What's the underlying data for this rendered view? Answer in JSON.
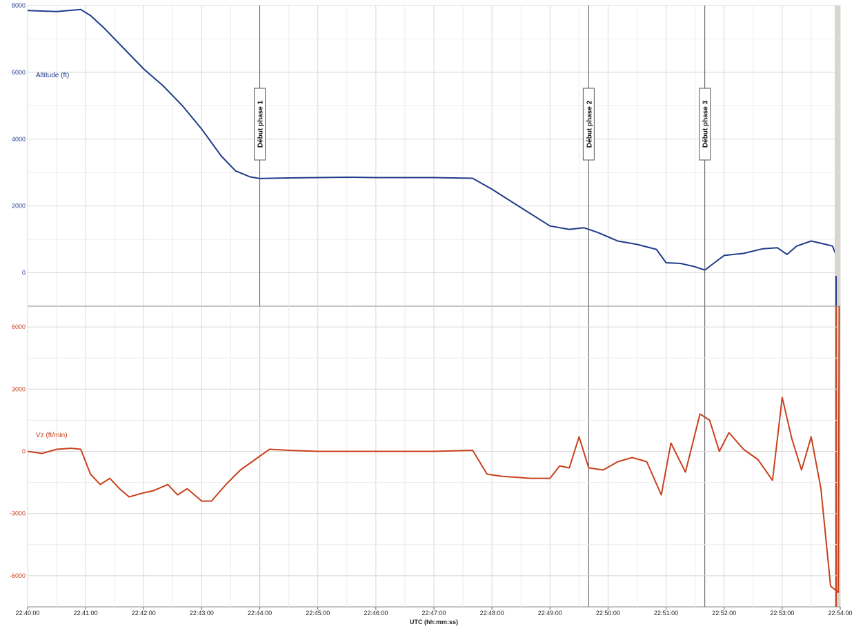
{
  "chart_data": [
    {
      "type": "line",
      "panel": "top",
      "series": [
        {
          "name": "Altitude (ft)",
          "color": "#1f3b8a",
          "points": [
            [
              "22:40:00",
              7850
            ],
            [
              "22:40:30",
              7820
            ],
            [
              "22:40:55",
              7880
            ],
            [
              "22:41:05",
              7700
            ],
            [
              "22:41:20",
              7300
            ],
            [
              "22:41:40",
              6700
            ],
            [
              "22:42:00",
              6100
            ],
            [
              "22:42:20",
              5600
            ],
            [
              "22:42:40",
              5000
            ],
            [
              "22:43:00",
              4300
            ],
            [
              "22:43:20",
              3500
            ],
            [
              "22:43:35",
              3050
            ],
            [
              "22:43:50",
              2870
            ],
            [
              "22:44:00",
              2820
            ],
            [
              "22:44:30",
              2840
            ],
            [
              "22:45:00",
              2850
            ],
            [
              "22:45:30",
              2860
            ],
            [
              "22:46:00",
              2850
            ],
            [
              "22:46:30",
              2850
            ],
            [
              "22:47:00",
              2850
            ],
            [
              "22:47:40",
              2830
            ],
            [
              "22:48:00",
              2500
            ],
            [
              "22:48:30",
              1950
            ],
            [
              "22:49:00",
              1400
            ],
            [
              "22:49:20",
              1300
            ],
            [
              "22:49:35",
              1350
            ],
            [
              "22:49:50",
              1200
            ],
            [
              "22:50:10",
              950
            ],
            [
              "22:50:30",
              850
            ],
            [
              "22:50:50",
              700
            ],
            [
              "22:51:00",
              300
            ],
            [
              "22:51:15",
              280
            ],
            [
              "22:51:30",
              180
            ],
            [
              "22:51:40",
              80
            ],
            [
              "22:51:50",
              300
            ],
            [
              "22:52:00",
              520
            ],
            [
              "22:52:20",
              580
            ],
            [
              "22:52:40",
              720
            ],
            [
              "22:52:55",
              750
            ],
            [
              "22:53:05",
              550
            ],
            [
              "22:53:15",
              800
            ],
            [
              "22:53:30",
              950
            ],
            [
              "22:53:45",
              850
            ],
            [
              "22:53:52",
              800
            ],
            [
              "22:53:56",
              500
            ],
            [
              "22:53:58",
              0
            ],
            [
              "22:53:59",
              -1000
            ]
          ]
        }
      ],
      "ylim": [
        -1000,
        8000
      ],
      "yticks": [
        "8000",
        "6000",
        "4000",
        "2000",
        "0"
      ],
      "annotations": [
        {
          "x": "22:44:00",
          "label": "Début phase 1"
        },
        {
          "x": "22:49:40",
          "label": "Début phase 2"
        },
        {
          "x": "22:51:40",
          "label": "Début phase 3"
        }
      ],
      "grid": true
    },
    {
      "type": "line",
      "panel": "bottom",
      "series": [
        {
          "name": "Vz (ft/min)",
          "color": "#c8401c",
          "points": [
            [
              "22:40:00",
              0
            ],
            [
              "22:40:15",
              -100
            ],
            [
              "22:40:30",
              100
            ],
            [
              "22:40:45",
              150
            ],
            [
              "22:40:55",
              100
            ],
            [
              "22:41:05",
              -1100
            ],
            [
              "22:41:15",
              -1600
            ],
            [
              "22:41:25",
              -1300
            ],
            [
              "22:41:35",
              -1800
            ],
            [
              "22:41:45",
              -2200
            ],
            [
              "22:42:00",
              -2000
            ],
            [
              "22:42:10",
              -1900
            ],
            [
              "22:42:25",
              -1600
            ],
            [
              "22:42:35",
              -2100
            ],
            [
              "22:42:45",
              -1800
            ],
            [
              "22:43:00",
              -2400
            ],
            [
              "22:43:10",
              -2400
            ],
            [
              "22:43:25",
              -1600
            ],
            [
              "22:43:40",
              -900
            ],
            [
              "22:43:55",
              -400
            ],
            [
              "22:44:10",
              100
            ],
            [
              "22:44:30",
              50
            ],
            [
              "22:45:00",
              0
            ],
            [
              "22:45:30",
              0
            ],
            [
              "22:46:00",
              0
            ],
            [
              "22:46:30",
              0
            ],
            [
              "22:47:00",
              0
            ],
            [
              "22:47:40",
              50
            ],
            [
              "22:47:55",
              -1100
            ],
            [
              "22:48:10",
              -1200
            ],
            [
              "22:48:40",
              -1300
            ],
            [
              "22:49:00",
              -1300
            ],
            [
              "22:49:10",
              -700
            ],
            [
              "22:49:20",
              -800
            ],
            [
              "22:49:30",
              700
            ],
            [
              "22:49:40",
              -800
            ],
            [
              "22:49:55",
              -900
            ],
            [
              "22:50:10",
              -500
            ],
            [
              "22:50:25",
              -300
            ],
            [
              "22:50:40",
              -500
            ],
            [
              "22:50:55",
              -2100
            ],
            [
              "22:51:05",
              400
            ],
            [
              "22:51:20",
              -1000
            ],
            [
              "22:51:35",
              1800
            ],
            [
              "22:51:45",
              1500
            ],
            [
              "22:51:55",
              0
            ],
            [
              "22:52:05",
              900
            ],
            [
              "22:52:20",
              100
            ],
            [
              "22:52:35",
              -400
            ],
            [
              "22:52:50",
              -1400
            ],
            [
              "22:53:00",
              2600
            ],
            [
              "22:53:10",
              600
            ],
            [
              "22:53:20",
              -900
            ],
            [
              "22:53:30",
              700
            ],
            [
              "22:53:40",
              -1800
            ],
            [
              "22:53:50",
              -6500
            ],
            [
              "22:53:58",
              -6800
            ],
            [
              "22:53:59",
              7000
            ]
          ]
        }
      ],
      "ylim": [
        -7500,
        7000
      ],
      "yticks": [
        "6000",
        "3000",
        "0",
        "-3000",
        "-6000"
      ],
      "grid": true
    }
  ],
  "x_axis": {
    "ticks": [
      "22:40:00",
      "22:41:00",
      "22:42:00",
      "22:43:00",
      "22:44:00",
      "22:45:00",
      "22:46:00",
      "22:47:00",
      "22:48:00",
      "22:49:00",
      "22:50:00",
      "22:51:00",
      "22:52:00",
      "22:53:00",
      "22:54:00"
    ],
    "label": "UTC (hh:mm:ss)"
  },
  "colors": {
    "altitude": "#1f3b8a",
    "vz": "#c8401c",
    "grid": "#d8d8d8",
    "phase_line": "#555555"
  }
}
